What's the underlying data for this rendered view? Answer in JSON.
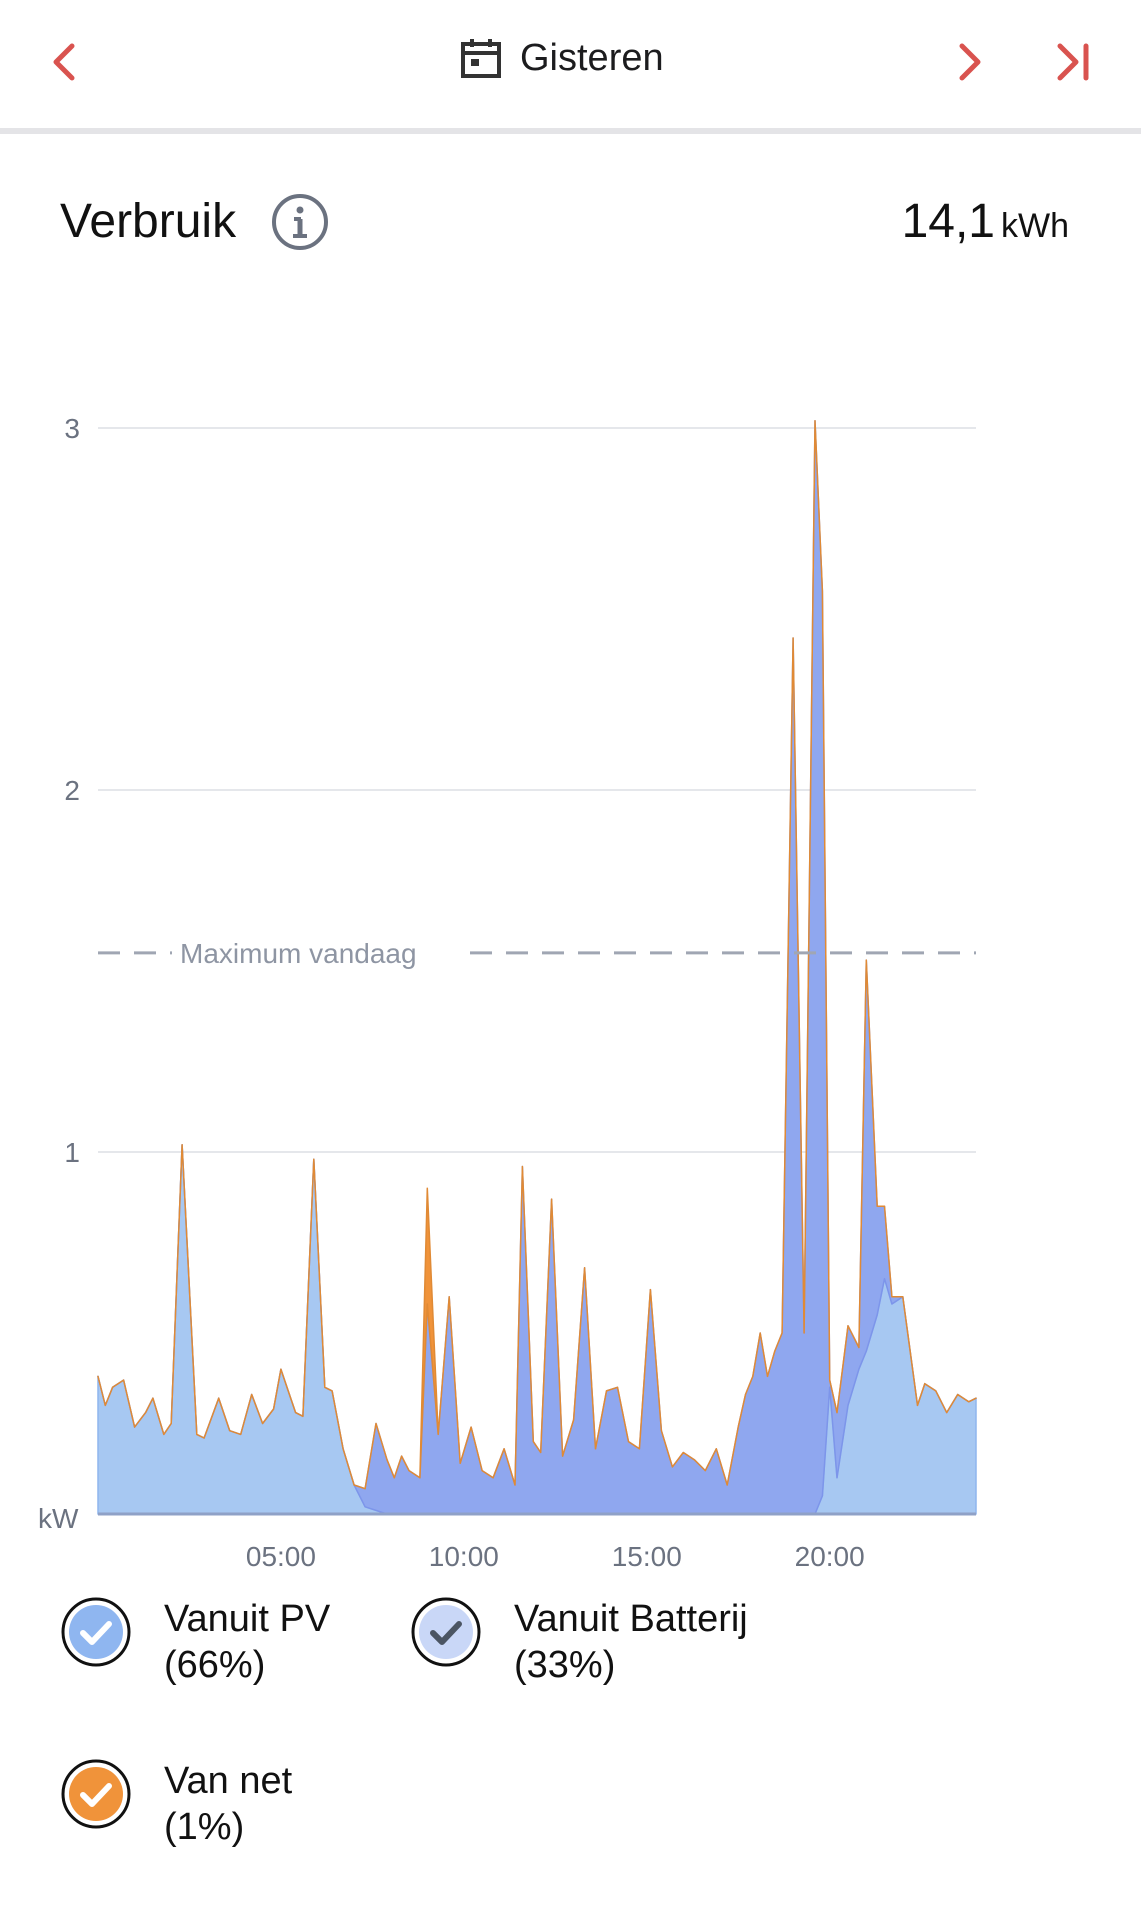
{
  "header": {
    "date_label": "Gisteren"
  },
  "section": {
    "title": "Verbruik",
    "total_value": "14,1",
    "total_unit": "kWh"
  },
  "colors": {
    "accent": "#d9534f",
    "pv": "#a7c8f2",
    "battery": "#8fa7ef",
    "grid": "#f0933a"
  },
  "legend": [
    {
      "name": "Vanuit PV",
      "share": "(66%)"
    },
    {
      "name": "Vanuit Batterij",
      "share": "(33%)"
    },
    {
      "name": "Van net",
      "share": "(1%)"
    }
  ],
  "chart_data": {
    "type": "area",
    "ylabel": "kW",
    "ylim": [
      0,
      3
    ],
    "yticks": [
      "1",
      "2",
      "3"
    ],
    "xticks": [
      "05:00",
      "10:00",
      "15:00",
      "20:00"
    ],
    "xlim": [
      0,
      24
    ],
    "reference_line": {
      "label": "Maximum vandaag",
      "value": 1.55
    },
    "x": [
      0.0,
      0.2,
      0.4,
      0.7,
      1.0,
      1.3,
      1.5,
      1.8,
      2.0,
      2.3,
      2.7,
      2.9,
      3.3,
      3.6,
      3.9,
      4.2,
      4.5,
      4.8,
      5.0,
      5.2,
      5.4,
      5.6,
      5.9,
      6.2,
      6.4,
      6.7,
      7.0,
      7.3,
      7.6,
      7.9,
      8.1,
      8.3,
      8.5,
      8.8,
      9.0,
      9.3,
      9.6,
      9.9,
      10.2,
      10.5,
      10.8,
      11.1,
      11.4,
      11.6,
      11.9,
      12.1,
      12.4,
      12.7,
      13.0,
      13.3,
      13.6,
      13.9,
      14.2,
      14.5,
      14.8,
      15.1,
      15.4,
      15.7,
      16.0,
      16.3,
      16.6,
      16.9,
      17.2,
      17.5,
      17.7,
      17.9,
      18.1,
      18.3,
      18.5,
      18.7,
      19.0,
      19.3,
      19.6,
      19.8,
      20.0,
      20.2,
      20.5,
      20.8,
      21.0,
      21.3,
      21.5,
      21.7,
      22.0,
      22.4,
      22.6,
      22.9,
      23.2,
      23.5,
      23.8,
      24.0
    ],
    "series": [
      {
        "name": "Vanuit PV (66%)",
        "values": [
          0.38,
          0.3,
          0.35,
          0.37,
          0.24,
          0.28,
          0.32,
          0.22,
          0.25,
          1.02,
          0.22,
          0.21,
          0.32,
          0.23,
          0.22,
          0.33,
          0.25,
          0.29,
          0.4,
          0.34,
          0.28,
          0.27,
          0.98,
          0.35,
          0.34,
          0.18,
          0.08,
          0.02,
          0.01,
          0.0,
          0.0,
          0.0,
          0.0,
          0.0,
          0.0,
          0.0,
          0.0,
          0.0,
          0.0,
          0.0,
          0.0,
          0.0,
          0.0,
          0.0,
          0.0,
          0.0,
          0.0,
          0.0,
          0.0,
          0.0,
          0.0,
          0.0,
          0.0,
          0.0,
          0.0,
          0.0,
          0.0,
          0.0,
          0.0,
          0.0,
          0.0,
          0.0,
          0.0,
          0.0,
          0.0,
          0.0,
          0.0,
          0.0,
          0.0,
          0.0,
          0.0,
          0.0,
          0.0,
          0.05,
          0.35,
          0.1,
          0.3,
          0.4,
          0.45,
          0.55,
          0.65,
          0.58,
          0.6,
          0.3,
          0.36,
          0.34,
          0.28,
          0.33,
          0.31,
          0.32
        ]
      },
      {
        "name": "Vanuit Batterij (33%)",
        "values": [
          0.0,
          0.0,
          0.0,
          0.0,
          0.0,
          0.0,
          0.0,
          0.0,
          0.0,
          0.0,
          0.0,
          0.0,
          0.0,
          0.0,
          0.0,
          0.0,
          0.0,
          0.0,
          0.0,
          0.0,
          0.0,
          0.0,
          0.0,
          0.0,
          0.0,
          0.0,
          0.0,
          0.05,
          0.24,
          0.15,
          0.1,
          0.16,
          0.12,
          0.1,
          0.58,
          0.22,
          0.6,
          0.14,
          0.24,
          0.12,
          0.1,
          0.18,
          0.08,
          0.96,
          0.2,
          0.17,
          0.87,
          0.16,
          0.26,
          0.68,
          0.18,
          0.34,
          0.35,
          0.2,
          0.18,
          0.62,
          0.23,
          0.13,
          0.17,
          0.15,
          0.12,
          0.18,
          0.08,
          0.24,
          0.33,
          0.38,
          0.5,
          0.38,
          0.45,
          0.5,
          2.42,
          0.5,
          3.02,
          2.5,
          0.02,
          0.18,
          0.22,
          0.06,
          1.08,
          0.3,
          0.2,
          0.02,
          0.0,
          0.0,
          0.0,
          0.0,
          0.0,
          0.0,
          0.0,
          0.0
        ]
      },
      {
        "name": "Van net (1%)",
        "values": [
          0.0,
          0.0,
          0.0,
          0.0,
          0.0,
          0.0,
          0.0,
          0.0,
          0.0,
          0.0,
          0.0,
          0.0,
          0.0,
          0.0,
          0.0,
          0.0,
          0.0,
          0.0,
          0.0,
          0.0,
          0.0,
          0.0,
          0.0,
          0.0,
          0.0,
          0.0,
          0.0,
          0.0,
          0.0,
          0.0,
          0.0,
          0.0,
          0.0,
          0.0,
          0.32,
          0.0,
          0.0,
          0.0,
          0.0,
          0.0,
          0.0,
          0.0,
          0.0,
          0.0,
          0.0,
          0.0,
          0.0,
          0.0,
          0.0,
          0.0,
          0.0,
          0.0,
          0.0,
          0.0,
          0.0,
          0.0,
          0.0,
          0.0,
          0.0,
          0.0,
          0.0,
          0.0,
          0.0,
          0.0,
          0.0,
          0.0,
          0.0,
          0.0,
          0.0,
          0.0,
          0.0,
          0.0,
          0.0,
          0.0,
          0.0,
          0.0,
          0.0,
          0.0,
          0.0,
          0.0,
          0.0,
          0.0,
          0.0,
          0.0,
          0.0,
          0.0,
          0.0,
          0.0,
          0.0,
          0.0
        ]
      }
    ]
  }
}
